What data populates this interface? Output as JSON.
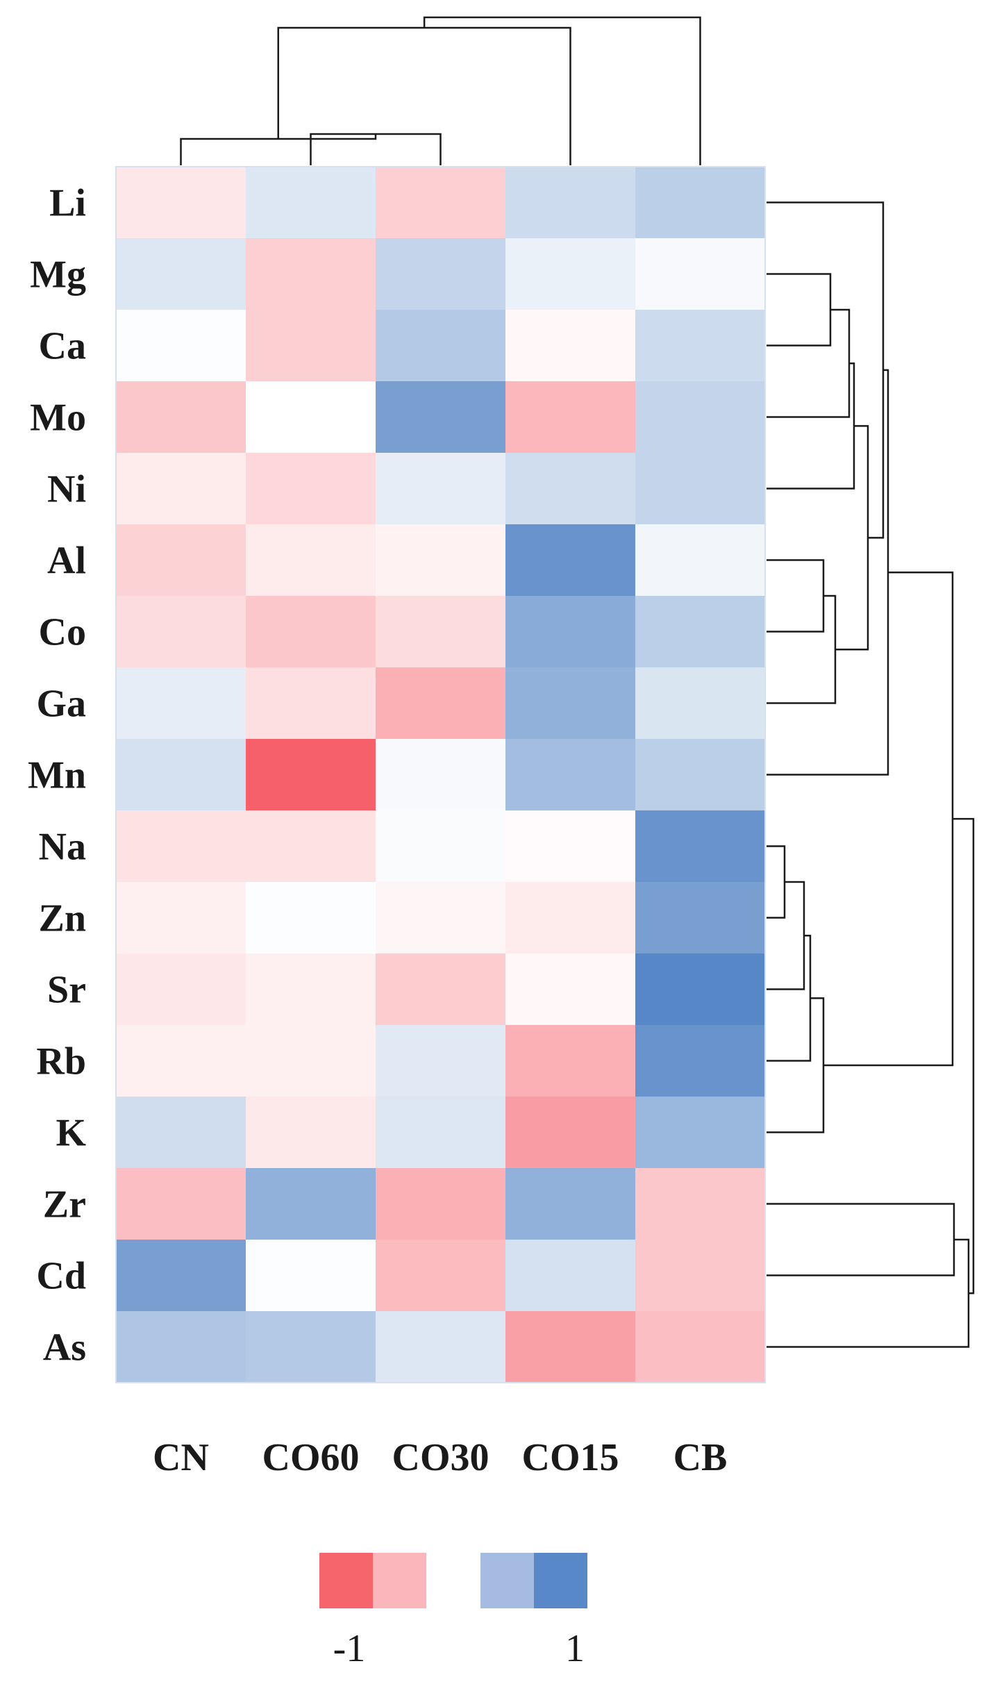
{
  "chart_data": {
    "type": "heatmap",
    "title": "",
    "xlabel": "",
    "ylabel": "",
    "columns": [
      "CN",
      "CO60",
      "CO30",
      "CO15",
      "CB"
    ],
    "rows": [
      "Li",
      "Mg",
      "Ca",
      "Mo",
      "Ni",
      "Al",
      "Co",
      "Ga",
      "Mn",
      "Na",
      "Zn",
      "Sr",
      "Rb",
      "K",
      "Zr",
      "Cd",
      "As"
    ],
    "values": [
      [
        -0.15,
        0.2,
        -0.3,
        0.3,
        0.4
      ],
      [
        0.2,
        -0.3,
        0.35,
        0.12,
        0.05
      ],
      [
        0.02,
        -0.3,
        0.45,
        -0.05,
        0.3
      ],
      [
        -0.35,
        0.0,
        0.8,
        -0.45,
        0.35
      ],
      [
        -0.12,
        -0.25,
        0.15,
        0.28,
        0.35
      ],
      [
        -0.28,
        -0.12,
        -0.08,
        0.9,
        0.08
      ],
      [
        -0.22,
        -0.35,
        -0.22,
        0.7,
        0.4
      ],
      [
        0.15,
        -0.2,
        -0.5,
        0.65,
        0.22
      ],
      [
        0.25,
        -1.0,
        0.05,
        0.55,
        0.4
      ],
      [
        -0.18,
        -0.18,
        0.03,
        -0.03,
        0.9
      ],
      [
        -0.1,
        0.02,
        -0.06,
        -0.12,
        0.8
      ],
      [
        -0.15,
        -0.1,
        -0.32,
        -0.05,
        1.0
      ],
      [
        -0.1,
        -0.1,
        0.18,
        -0.5,
        0.9
      ],
      [
        0.28,
        -0.14,
        0.2,
        -0.62,
        0.6
      ],
      [
        -0.4,
        0.65,
        -0.5,
        0.65,
        -0.35
      ],
      [
        0.8,
        0.02,
        -0.42,
        0.25,
        -0.35
      ],
      [
        0.48,
        0.45,
        0.2,
        -0.6,
        -0.4
      ]
    ],
    "color_scale": {
      "negative": "#f5606a",
      "neutral": "#ffffff",
      "positive": "#5787c6",
      "range": [
        -1,
        1
      ]
    },
    "legend": {
      "placement": "bottom",
      "swatches": [
        "#f5656b",
        "#fab6ba",
        "#a5bbe0",
        "#5888c7"
      ],
      "labels": [
        "-1",
        "1"
      ]
    },
    "column_dendrogram": [
      {
        "merge": [
          "CO60",
          "CO30"
        ]
      },
      {
        "merge": [
          "CN",
          "CO60+CO30"
        ]
      },
      {
        "merge": [
          "CN+CO60+CO30",
          "CO15"
        ]
      },
      {
        "merge": [
          "CN+CO60+CO30+CO15",
          "CB"
        ]
      }
    ],
    "row_dendrogram": [
      {
        "merge": [
          "Mg",
          "Ca"
        ]
      },
      {
        "merge": [
          "Mg+Ca",
          "Mo"
        ]
      },
      {
        "merge": [
          "Mg+Ca+Mo",
          "Ni"
        ]
      },
      {
        "merge": [
          "Al",
          "Co"
        ]
      },
      {
        "merge": [
          "Al+Co",
          "Ga"
        ]
      },
      {
        "merge": [
          "Mg..Ni",
          "Al+Co+Ga"
        ]
      },
      {
        "merge": [
          "Li",
          "Mg..Ga"
        ]
      },
      {
        "merge": [
          "Li..Ga",
          "Mn"
        ]
      },
      {
        "merge": [
          "Na",
          "Zn"
        ]
      },
      {
        "merge": [
          "Na+Zn",
          "Sr"
        ]
      },
      {
        "merge": [
          "Na+Zn+Sr",
          "Rb"
        ]
      },
      {
        "merge": [
          "Na..Rb",
          "K"
        ]
      },
      {
        "merge": [
          "Li..Mn",
          "Na..K"
        ]
      },
      {
        "merge": [
          "Zr",
          "Cd"
        ]
      },
      {
        "merge": [
          "Zr+Cd",
          "As"
        ]
      },
      {
        "merge": [
          "Li..K",
          "Zr+Cd+As"
        ]
      }
    ]
  }
}
